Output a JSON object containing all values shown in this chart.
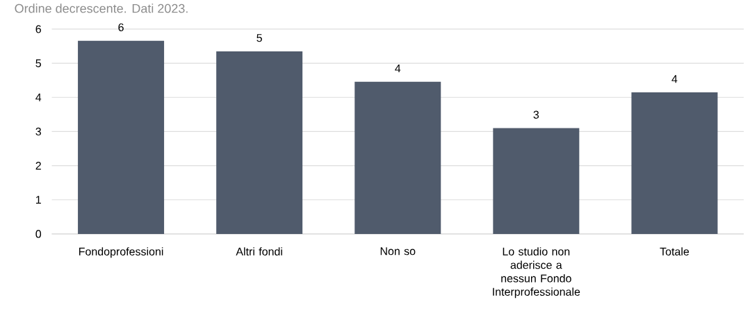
{
  "chart_data": {
    "type": "bar",
    "subtitle": "Ordine decrescente. Dati 2023.",
    "categories": [
      "Fondoprofessioni",
      "Altri fondi",
      "Non so",
      "Lo studio non aderisce a nessun Fondo Interprofessionale",
      "Totale"
    ],
    "values": [
      5.66,
      5.35,
      4.46,
      3.1,
      4.15
    ],
    "value_labels": [
      "6",
      "5",
      "4",
      "3",
      "4"
    ],
    "color": "#505b6c",
    "ylim": [
      0,
      6
    ],
    "yticks": [
      0,
      1,
      2,
      3,
      4,
      5,
      6
    ],
    "grid": "y"
  }
}
